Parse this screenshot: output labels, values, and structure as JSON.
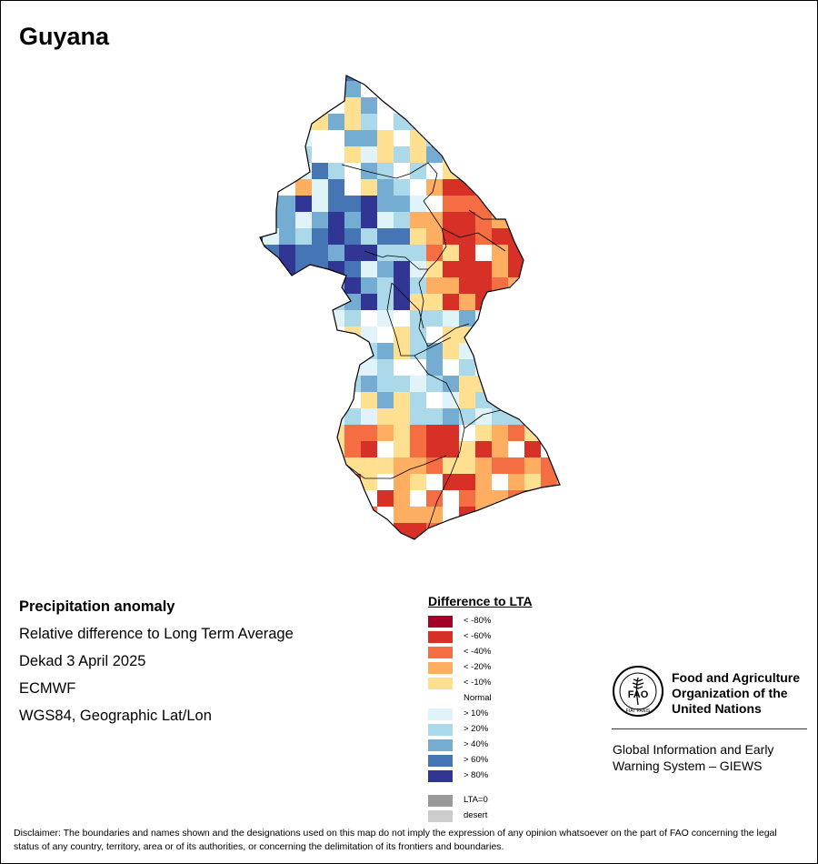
{
  "title": "Guyana",
  "meta": {
    "product": "Precipitation anomaly",
    "description": "Relative difference to Long Term Average",
    "period": "Dekad 3 April 2025",
    "source": "ECMWF",
    "projection": "WGS84, Geographic Lat/Lon"
  },
  "legend": {
    "title": "Difference to LTA",
    "items": [
      {
        "label": "< -80%",
        "color": "#a50026"
      },
      {
        "label": "< -60%",
        "color": "#d73027"
      },
      {
        "label": "< -40%",
        "color": "#f46d43"
      },
      {
        "label": "< -20%",
        "color": "#fdae61"
      },
      {
        "label": "< -10%",
        "color": "#fee090"
      },
      {
        "label": "Normal",
        "color": "#ffffff"
      },
      {
        "label": "> 10%",
        "color": "#e0f3f8"
      },
      {
        "label": "> 20%",
        "color": "#abd9e9"
      },
      {
        "label": "> 40%",
        "color": "#74add1"
      },
      {
        "label": "> 60%",
        "color": "#4575b4"
      },
      {
        "label": "> 80%",
        "color": "#313695"
      }
    ],
    "extra": [
      {
        "label": "LTA=0",
        "color": "#999999"
      },
      {
        "label": "desert",
        "color": "#cccccc"
      }
    ]
  },
  "org": {
    "name_lines": [
      "Food and Agriculture",
      "Organization of the",
      "United Nations"
    ],
    "emblem_text": "FAO",
    "emblem_motto": "FIAT PANIS",
    "system_lines": [
      "Global Information and Early",
      "Warning System – GIEWS"
    ]
  },
  "disclaimer": "Disclaimer: The boundaries and names shown and the designations used on this map do not imply the expression of any opinion whatsoever on the part of FAO concerning the legal status of any country, territory, area or of its authorities, or concerning the delimitation of its frontiers and boundaries."
}
